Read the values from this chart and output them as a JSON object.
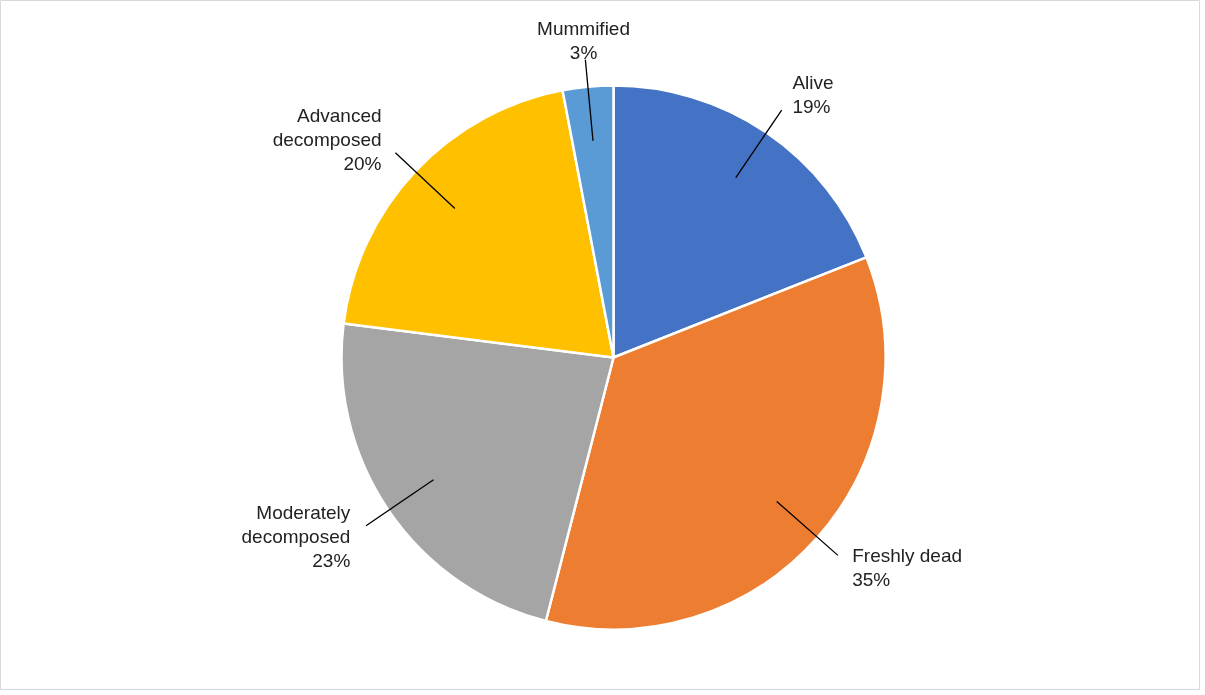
{
  "chart_data": {
    "type": "pie",
    "categories": [
      "Alive",
      "Freshly dead",
      "Moderately decomposed",
      "Advanced decomposed",
      "Mummified"
    ],
    "values": [
      19,
      35,
      23,
      20,
      3
    ],
    "colors": [
      "#4472c4",
      "#ed7d31",
      "#a5a5a5",
      "#ffc000",
      "#5b9bd5"
    ],
    "value_labels": [
      "19%",
      "35%",
      "23%",
      "20%",
      "3%"
    ]
  }
}
